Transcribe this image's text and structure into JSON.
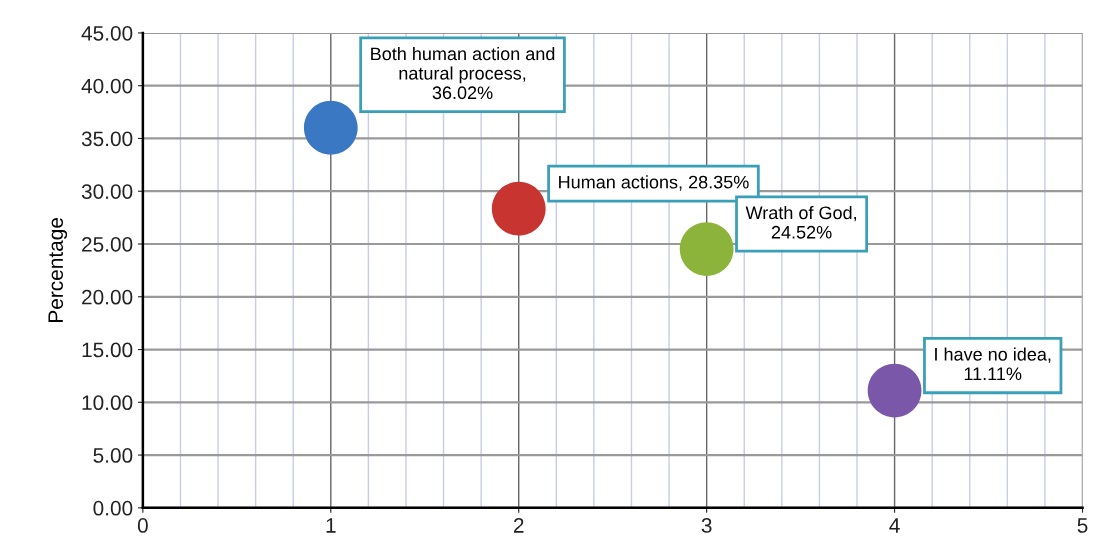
{
  "chart_data": {
    "type": "scatter",
    "ylabel": "Percentage",
    "x": [
      1,
      2,
      3,
      4
    ],
    "values": [
      36.02,
      28.35,
      24.52,
      11.11
    ],
    "colors": [
      "#3b78c4",
      "#c8342f",
      "#8cb43a",
      "#7b57a9"
    ],
    "value_labels": [
      "Both human action and\nnatural process,\n36.02%",
      "Human actions, 28.35%",
      "Wrath of God,\n24.52%",
      "I have no idea,\n11.11%"
    ],
    "xlim": [
      0,
      5
    ],
    "xticks": [
      0,
      1,
      2,
      3,
      4,
      5
    ],
    "ylim": [
      0,
      45
    ],
    "yticks": [
      {
        "value": 0,
        "label": "0.00"
      },
      {
        "value": 5,
        "label": "5.00"
      },
      {
        "value": 10,
        "label": "10.00"
      },
      {
        "value": 15,
        "label": "15.00"
      },
      {
        "value": 20,
        "label": "20.00"
      },
      {
        "value": 25,
        "label": "25.00"
      },
      {
        "value": 30,
        "label": "30.00"
      },
      {
        "value": 35,
        "label": "35.00"
      },
      {
        "value": 40,
        "label": "40.00"
      },
      {
        "value": 45,
        "label": "45.00"
      }
    ],
    "grid": true,
    "marker": "circle"
  }
}
